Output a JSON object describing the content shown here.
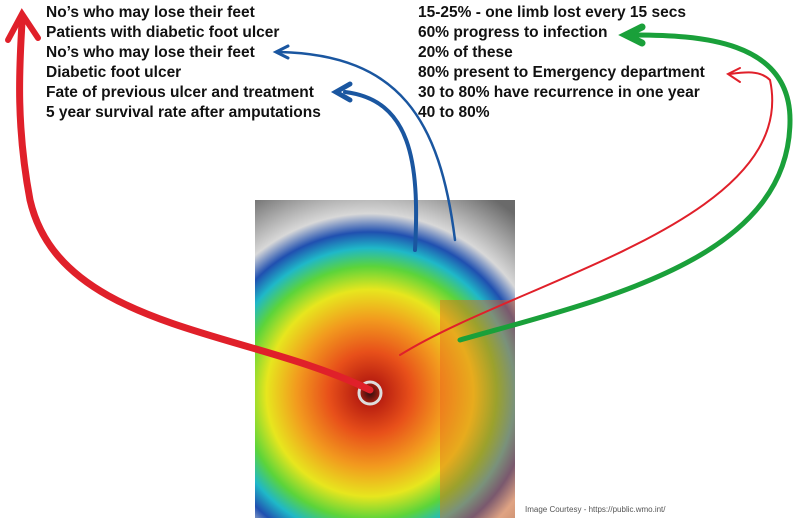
{
  "left_labels": [
    "No’s who may lose their feet",
    "Patients with diabetic foot ulcer",
    "No’s who may lose their feet",
    "Diabetic foot ulcer",
    "Fate of previous ulcer and treatment",
    "5 year survival rate after amputations"
  ],
  "right_labels": [
    "15-25% - one limb lost every 15 secs",
    "60% progress to infection",
    "20% of these",
    "80% present to Emergency department",
    "30 to 80% have recurrence in one year",
    "40 to 80%"
  ],
  "credit": "Image Courtesy - https://public.wmo.int/"
}
